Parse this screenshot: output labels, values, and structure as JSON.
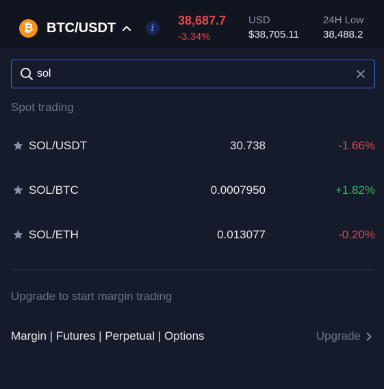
{
  "header": {
    "coin_icon_glyph": "₿",
    "pair": "BTC/USDT",
    "last_price": "38,687.7",
    "change": "-3.34%",
    "usd_label": "USD",
    "usd_value": "$38,705.11",
    "low_label": "24H Low",
    "low_value": "38,488.2"
  },
  "search": {
    "value": "sol",
    "placeholder": ""
  },
  "spot": {
    "title": "Spot trading",
    "rows": [
      {
        "pair": "SOL/USDT",
        "price": "30.738",
        "change": "-1.66%",
        "direction": "down"
      },
      {
        "pair": "SOL/BTC",
        "price": "0.0007950",
        "change": "+1.82%",
        "direction": "up"
      },
      {
        "pair": "SOL/ETH",
        "price": "0.013077",
        "change": "-0.20%",
        "direction": "down"
      }
    ]
  },
  "margin": {
    "note": "Upgrade to start margin trading",
    "modes": "Margin | Futures | Perpetual | Options",
    "upgrade_label": "Upgrade"
  },
  "colors": {
    "down": "#e5484d",
    "up": "#2ebd66",
    "accent": "#3d6fe0",
    "coin": "#f7931a"
  }
}
